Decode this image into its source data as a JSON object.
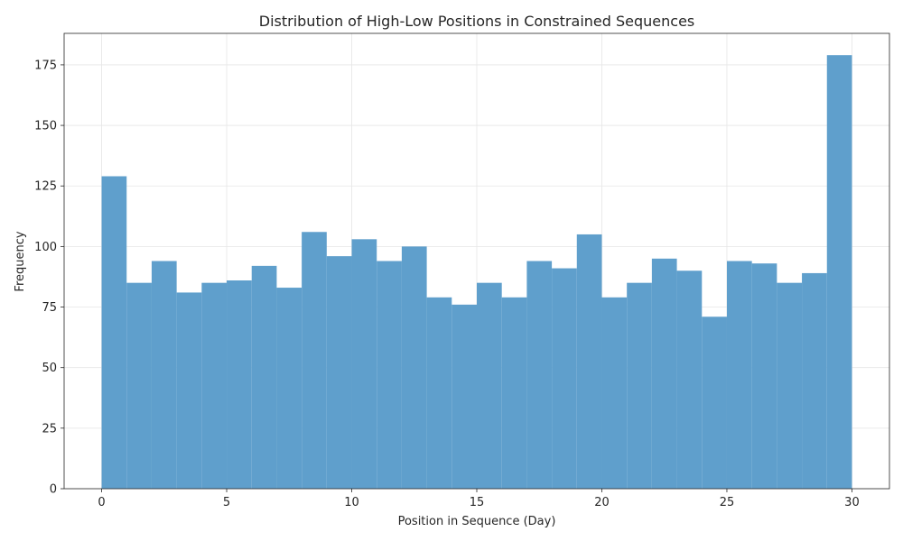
{
  "chart_data": {
    "type": "bar",
    "title": "Distribution of High-Low Positions in Constrained Sequences",
    "xlabel": "Position in Sequence (Day)",
    "ylabel": "Frequency",
    "bin_edges": [
      0,
      1,
      2,
      3,
      4,
      5,
      6,
      7,
      8,
      9,
      10,
      11,
      12,
      13,
      14,
      15,
      16,
      17,
      18,
      19,
      20,
      21,
      22,
      23,
      24,
      25,
      26,
      27,
      28,
      29,
      30
    ],
    "values": [
      129,
      85,
      94,
      81,
      85,
      86,
      92,
      83,
      106,
      96,
      103,
      94,
      100,
      79,
      76,
      85,
      79,
      94,
      91,
      105,
      79,
      85,
      95,
      90,
      71,
      94,
      93,
      85,
      89,
      179
    ],
    "xlim": [
      -1.5,
      31.5
    ],
    "ylim": [
      0,
      188
    ],
    "xticks": [
      0,
      5,
      10,
      15,
      20,
      25,
      30
    ],
    "yticks": [
      0,
      25,
      50,
      75,
      100,
      125,
      150,
      175
    ],
    "grid": true,
    "bar_color": "#5f9fcc"
  }
}
